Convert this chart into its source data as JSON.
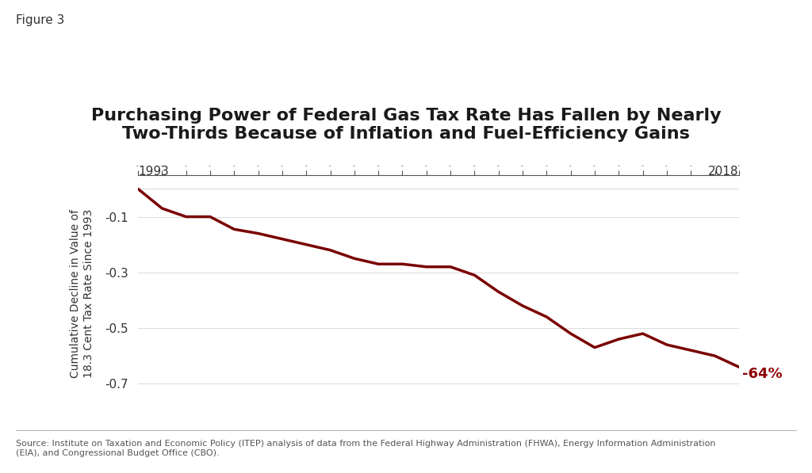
{
  "title": "Purchasing Power of Federal Gas Tax Rate Has Fallen by Nearly\nTwo-Thirds Because of Inflation and Fuel-Efficiency Gains",
  "figure_label": "Figure 3",
  "ylabel": "Cumulative Decline in Value of\n18.3 Cent Tax Rate Since 1993",
  "source_text": "Source: Institute on Taxation and Economic Policy (ITEP) analysis of data from the Federal Highway Administration (FHWA), Energy Information Administration\n(EIA), and Congressional Budget Office (CBO).",
  "line_color": "#7a0000",
  "annotation_text": "-64%",
  "annotation_color": "#8b0000",
  "x_start_label": "1993",
  "x_end_label": "2018",
  "years": [
    1993,
    1994,
    1995,
    1996,
    1997,
    1998,
    1999,
    2000,
    2001,
    2002,
    2003,
    2004,
    2005,
    2006,
    2007,
    2008,
    2009,
    2010,
    2011,
    2012,
    2013,
    2014,
    2015,
    2016,
    2017,
    2018
  ],
  "values": [
    0.0,
    -0.07,
    -0.1,
    -0.1,
    -0.145,
    -0.16,
    -0.18,
    -0.2,
    -0.22,
    -0.25,
    -0.27,
    -0.27,
    -0.28,
    -0.28,
    -0.31,
    -0.37,
    -0.42,
    -0.46,
    -0.52,
    -0.57,
    -0.54,
    -0.52,
    -0.56,
    -0.58,
    -0.6,
    -0.64
  ],
  "ylim": [
    -0.8,
    0.05
  ],
  "yticks": [
    0.0,
    -0.1,
    -0.3,
    -0.5,
    -0.7
  ],
  "ytick_labels": [
    "",
    "-0.1",
    "-0.3",
    "-0.5",
    "-0.7"
  ],
  "background_color": "#ffffff",
  "title_color": "#1a1a1a",
  "figure_label_color": "#333333",
  "line_width": 2.5
}
